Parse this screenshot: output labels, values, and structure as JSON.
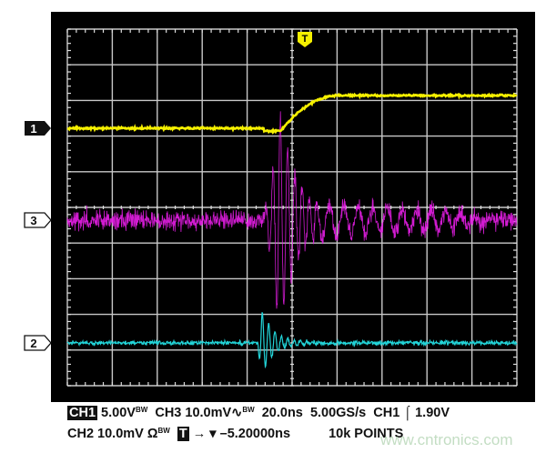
{
  "chart_data": {
    "type": "line",
    "title": "",
    "xlabel": "",
    "ylabel": "",
    "grid": true,
    "grid_divisions": {
      "horizontal": 10,
      "vertical": 10
    },
    "time_per_div_ns": 20.0,
    "xlim_ns": [
      -100,
      100
    ],
    "trigger_marker": "T",
    "series": [
      {
        "name": "1",
        "channel": "CH1",
        "color": "#f5f000",
        "volts_per_div": 5.0,
        "t_ns": [
          -100,
          -12,
          -5,
          0,
          10,
          20,
          100
        ],
        "values_v": [
          0,
          0,
          -0.3,
          0.5,
          2.8,
          4.6,
          4.6
        ]
      },
      {
        "name": "3",
        "channel": "CH3",
        "color": "#e81ee8",
        "volts_per_div": 0.01,
        "t_ns": [
          -100,
          -13,
          -7,
          -6,
          -5,
          0,
          5,
          20,
          40,
          60,
          100
        ],
        "values_v": [
          0,
          0.008,
          0.02,
          0.032,
          -0.026,
          0.022,
          0.016,
          0.008,
          0.006,
          0.005,
          0
        ]
      },
      {
        "name": "2",
        "channel": "CH2",
        "color": "#22d4d8",
        "volts_per_div": 0.01,
        "t_ns": [
          -100,
          -15,
          -12,
          -10,
          -8,
          -4,
          0,
          100
        ],
        "values_v": [
          0,
          0,
          0.006,
          -0.0077,
          0.005,
          0.002,
          0,
          0
        ]
      }
    ]
  },
  "markers": {
    "ch1": "1",
    "ch3": "3",
    "ch2": "2",
    "trigger": "T"
  },
  "readout": {
    "line1": {
      "ch1_label": "CH1",
      "ch1_scale": "5.00V",
      "bw1": "BW",
      "ch3": "CH3 10.0mV",
      "ch3_sym": "∿",
      "bw3": "BW",
      "timebase": "20.0ns",
      "sample_rate": "5.00GS/s",
      "trig_src": "CH1",
      "trig_slope": "⌠",
      "trig_level": "1.90V"
    },
    "line2": {
      "ch2": "CH2 10.0mV",
      "ch2_sym": "Ω",
      "bw2": "BW",
      "trig_icon": "T",
      "arrow": "→ ▾",
      "trig_pos": "–5.20000ns",
      "points": "10k POINTS"
    }
  },
  "watermark": "www.cntronics.com"
}
